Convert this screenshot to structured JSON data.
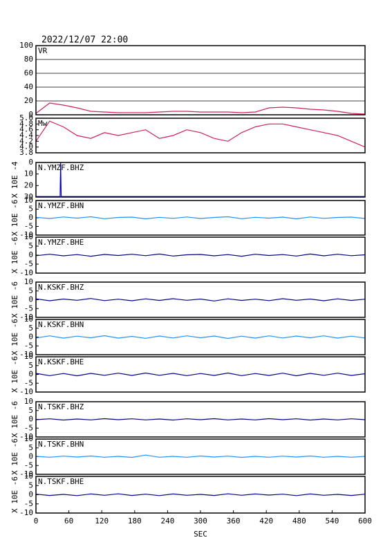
{
  "chart_data": [
    {
      "type": "line",
      "title": "2022/12/07 22:00",
      "label": "VR",
      "ylim": [
        0,
        100
      ],
      "yticks": [
        0,
        20,
        40,
        60,
        80,
        100
      ],
      "grid": true,
      "xlim": [
        0,
        600
      ],
      "x": [
        0,
        25,
        50,
        75,
        100,
        125,
        150,
        175,
        200,
        225,
        250,
        275,
        300,
        325,
        350,
        375,
        400,
        425,
        450,
        475,
        500,
        525,
        550,
        575,
        600
      ],
      "series": [
        {
          "color": "#d0205a",
          "values": [
            2,
            17,
            14,
            10,
            5,
            4,
            3,
            3,
            3,
            4,
            5,
            5,
            4,
            4,
            4,
            3,
            4,
            10,
            11,
            10,
            8,
            7,
            5,
            2,
            1
          ]
        }
      ]
    },
    {
      "type": "line",
      "label": "Mw",
      "ylim": [
        3.8,
        5.0
      ],
      "yticks": [
        {
          "value": 3.8,
          "label": "3.8"
        },
        {
          "value": 4,
          "label": "4.0"
        },
        {
          "value": 4.2,
          "label": "4.2"
        },
        {
          "value": 4.4,
          "label": "4.4"
        },
        {
          "value": 4.6,
          "label": "4.6"
        },
        {
          "value": 4.8,
          "label": "4.8"
        },
        {
          "value": 5,
          "label": "5.0"
        }
      ],
      "grid": false,
      "xlim": [
        0,
        600
      ],
      "x": [
        0,
        25,
        50,
        75,
        100,
        125,
        150,
        175,
        200,
        225,
        250,
        275,
        300,
        325,
        350,
        375,
        400,
        425,
        450,
        475,
        500,
        525,
        550,
        575,
        600
      ],
      "series": [
        {
          "color": "#d0205a",
          "values": [
            4.2,
            4.9,
            4.7,
            4.4,
            4.3,
            4.5,
            4.4,
            4.5,
            4.6,
            4.3,
            4.4,
            4.6,
            4.5,
            4.3,
            4.2,
            4.5,
            4.7,
            4.8,
            4.8,
            4.7,
            4.6,
            4.5,
            4.4,
            4.2,
            4.0
          ]
        }
      ]
    },
    {
      "type": "line",
      "label": "N.YMZF.BHZ",
      "ylabel": "X 10E -4",
      "ylim": [
        30,
        0
      ],
      "yticks": [
        0,
        10,
        20,
        30
      ],
      "grid": false,
      "xlim": [
        0,
        600
      ],
      "x": [
        0,
        44,
        45,
        46,
        600
      ],
      "series": [
        {
          "color": "#0000cc",
          "values": [
            29.5,
            29.5,
            0,
            29.5,
            29.5
          ]
        }
      ]
    },
    {
      "type": "line",
      "label": "N.YMZF.BHN",
      "ylabel": "X 10E -6",
      "ylim": [
        -10,
        10
      ],
      "yticks": [
        -10,
        -5,
        0,
        5,
        10
      ],
      "grid": false,
      "xlim": [
        0,
        600
      ],
      "x": [
        0,
        25,
        50,
        75,
        100,
        125,
        150,
        175,
        200,
        225,
        250,
        275,
        300,
        325,
        350,
        375,
        400,
        425,
        450,
        475,
        500,
        525,
        550,
        575,
        600
      ],
      "series": [
        {
          "color": "#1e90ff",
          "values": [
            0.3,
            -0.4,
            0.5,
            -0.2,
            0.6,
            -0.5,
            0.2,
            0.4,
            -0.6,
            0.3,
            -0.3,
            0.5,
            -0.4,
            0.2,
            0.6,
            -0.5,
            0.3,
            -0.2,
            0.4,
            -0.6,
            0.5,
            -0.3,
            0.2,
            0.4,
            -0.4
          ]
        }
      ]
    },
    {
      "type": "line",
      "label": "N.YMZF.BHE",
      "ylabel": "X 10E -6",
      "ylim": [
        -10,
        10
      ],
      "yticks": [
        -10,
        -5,
        0,
        5,
        10
      ],
      "grid": false,
      "xlim": [
        0,
        600
      ],
      "x": [
        0,
        25,
        50,
        75,
        100,
        125,
        150,
        175,
        200,
        225,
        250,
        275,
        300,
        325,
        350,
        375,
        400,
        425,
        450,
        475,
        500,
        525,
        550,
        575,
        600
      ],
      "series": [
        {
          "color": "#000080",
          "values": [
            -0.3,
            0.5,
            -0.4,
            0.3,
            -0.6,
            0.4,
            -0.2,
            0.5,
            -0.3,
            0.6,
            -0.5,
            0.2,
            0.4,
            -0.4,
            0.3,
            -0.6,
            0.5,
            -0.2,
            0.3,
            -0.5,
            0.6,
            -0.4,
            0.5,
            -0.3,
            0.2
          ]
        }
      ]
    },
    {
      "type": "line",
      "label": "N.KSKF.BHZ",
      "ylabel": "X 10E -6",
      "ylim": [
        -10,
        10
      ],
      "yticks": [
        -10,
        -5,
        0,
        5,
        10
      ],
      "grid": false,
      "xlim": [
        0,
        600
      ],
      "x": [
        0,
        25,
        50,
        75,
        100,
        125,
        150,
        175,
        200,
        225,
        250,
        275,
        300,
        325,
        350,
        375,
        400,
        425,
        450,
        475,
        500,
        525,
        550,
        575,
        600
      ],
      "series": [
        {
          "color": "#000080",
          "values": [
            0.5,
            -0.6,
            0.4,
            -0.3,
            0.7,
            -0.5,
            0.3,
            -0.6,
            0.5,
            -0.4,
            0.6,
            -0.3,
            0.4,
            -0.7,
            0.5,
            -0.4,
            0.3,
            -0.5,
            0.6,
            -0.3,
            0.4,
            -0.6,
            0.5,
            -0.4,
            0.3
          ]
        }
      ]
    },
    {
      "type": "line",
      "label": "N.KSKF.BHN",
      "ylabel": "X 10E -6",
      "ylim": [
        -10,
        10
      ],
      "yticks": [
        -10,
        -5,
        0,
        5,
        10
      ],
      "grid": false,
      "xlim": [
        0,
        600
      ],
      "x": [
        0,
        25,
        50,
        75,
        100,
        125,
        150,
        175,
        200,
        225,
        250,
        275,
        300,
        325,
        350,
        375,
        400,
        425,
        450,
        475,
        500,
        525,
        550,
        575,
        600
      ],
      "series": [
        {
          "color": "#1e90ff",
          "values": [
            -0.5,
            0.7,
            -0.6,
            0.5,
            -0.4,
            0.8,
            -0.6,
            0.4,
            -0.7,
            0.6,
            -0.5,
            0.7,
            -0.4,
            0.6,
            -0.8,
            0.5,
            -0.6,
            0.7,
            -0.5,
            0.6,
            -0.4,
            0.7,
            -0.6,
            0.5,
            -0.5
          ]
        }
      ]
    },
    {
      "type": "line",
      "label": "N.KSKF.BHE",
      "ylabel": "X 10E -6",
      "ylim": [
        -10,
        10
      ],
      "yticks": [
        -10,
        -5,
        0,
        5,
        10
      ],
      "grid": false,
      "xlim": [
        0,
        600
      ],
      "x": [
        0,
        25,
        50,
        75,
        100,
        125,
        150,
        175,
        200,
        225,
        250,
        275,
        300,
        325,
        350,
        375,
        400,
        425,
        450,
        475,
        500,
        525,
        550,
        575,
        600
      ],
      "series": [
        {
          "color": "#000080",
          "values": [
            0.6,
            -0.7,
            0.5,
            -0.8,
            0.6,
            -0.5,
            0.7,
            -0.6,
            0.8,
            -0.5,
            0.6,
            -0.7,
            0.5,
            -0.6,
            0.8,
            -0.7,
            0.5,
            -0.6,
            0.7,
            -0.8,
            0.6,
            -0.5,
            0.7,
            -0.6,
            0.4
          ]
        }
      ]
    },
    {
      "type": "line",
      "label": "N.TSKF.BHZ",
      "ylabel": "X 10E -6",
      "ylim": [
        -10,
        10
      ],
      "yticks": [
        -10,
        -5,
        0,
        5,
        10
      ],
      "grid": false,
      "xlim": [
        0,
        600
      ],
      "x": [
        0,
        25,
        50,
        75,
        100,
        125,
        150,
        175,
        200,
        225,
        250,
        275,
        300,
        325,
        350,
        375,
        400,
        425,
        450,
        475,
        500,
        525,
        550,
        575,
        600
      ],
      "series": [
        {
          "color": "#000080",
          "values": [
            -0.2,
            0.3,
            -0.4,
            0.2,
            -0.3,
            0.4,
            -0.2,
            0.3,
            -0.3,
            0.2,
            -0.4,
            0.3,
            -0.2,
            0.4,
            -0.3,
            0.2,
            -0.3,
            0.4,
            -0.2,
            0.3,
            -0.4,
            0.2,
            -0.3,
            0.3,
            -0.2
          ]
        }
      ]
    },
    {
      "type": "line",
      "label": "N.TSKF.BHN",
      "ylabel": "X 10E -6",
      "ylim": [
        -10,
        10
      ],
      "yticks": [
        -10,
        -5,
        0,
        5,
        10
      ],
      "grid": false,
      "xlim": [
        0,
        600
      ],
      "x": [
        0,
        25,
        50,
        75,
        100,
        125,
        150,
        175,
        200,
        225,
        250,
        275,
        300,
        325,
        350,
        375,
        400,
        425,
        450,
        475,
        500,
        525,
        550,
        575,
        600
      ],
      "series": [
        {
          "color": "#1e90ff",
          "values": [
            0.2,
            -0.3,
            0.3,
            -0.2,
            0.4,
            -0.3,
            0.2,
            -0.4,
            0.9,
            -0.3,
            0.2,
            -0.3,
            0.4,
            -0.2,
            0.3,
            -0.4,
            0.2,
            -0.3,
            0.3,
            -0.2,
            0.4,
            -0.3,
            0.2,
            -0.3,
            0.2
          ]
        }
      ]
    },
    {
      "type": "line",
      "label": "N.TSKF.BHE",
      "ylabel": "X 10E -6",
      "xlabel": "SEC",
      "ylim": [
        -10,
        10
      ],
      "yticks": [
        -10,
        -5,
        0,
        5,
        10
      ],
      "grid": false,
      "xlim": [
        0,
        600
      ],
      "xticks": [
        0,
        60,
        120,
        180,
        240,
        300,
        360,
        420,
        480,
        540,
        600
      ],
      "x": [
        0,
        25,
        50,
        75,
        100,
        125,
        150,
        175,
        200,
        225,
        250,
        275,
        300,
        325,
        350,
        375,
        400,
        425,
        450,
        475,
        500,
        525,
        550,
        575,
        600
      ],
      "series": [
        {
          "color": "#000080",
          "values": [
            0.3,
            -0.4,
            0.2,
            -0.5,
            0.4,
            -0.3,
            0.5,
            -0.4,
            0.3,
            -0.5,
            0.4,
            -0.3,
            0.2,
            -0.4,
            0.5,
            -0.3,
            0.4,
            -0.2,
            0.3,
            -0.5,
            0.4,
            -0.3,
            0.2,
            -0.4,
            0.3
          ]
        }
      ]
    }
  ]
}
